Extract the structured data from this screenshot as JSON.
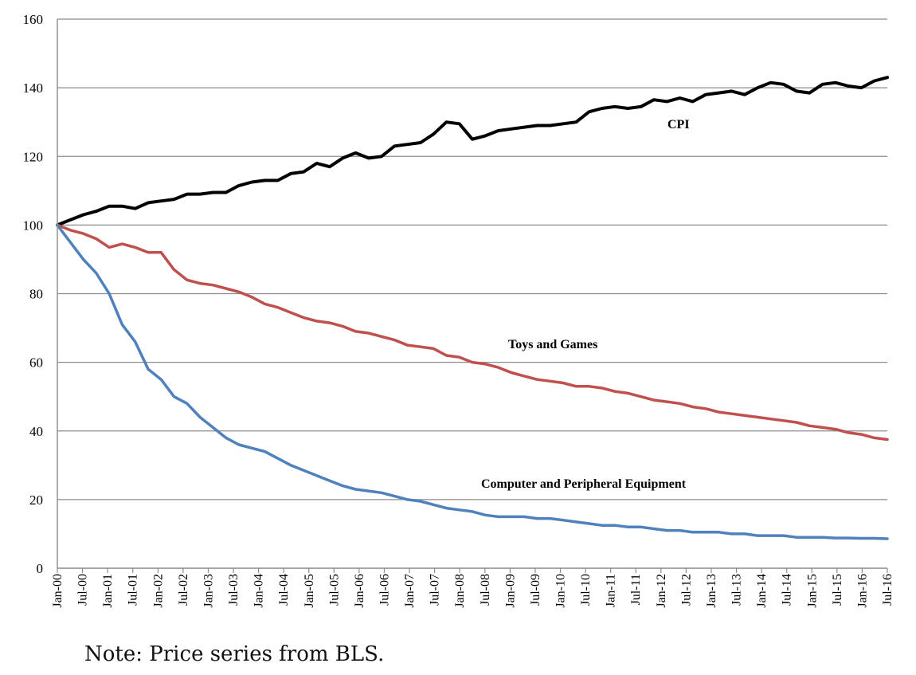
{
  "note": "Note: Price series from BLS.",
  "chart_data": {
    "type": "line",
    "x_tick_labels": [
      "Jan-00",
      "Jul-00",
      "Jan-01",
      "Jul-01",
      "Jan-02",
      "Jul-02",
      "Jan-03",
      "Jul-03",
      "Jan-04",
      "Jul-04",
      "Jan-05",
      "Jul-05",
      "Jan-06",
      "Jul-06",
      "Jan-07",
      "Jul-07",
      "Jan-08",
      "Jul-08",
      "Jan-09",
      "Jul-09",
      "Jan-10",
      "Jul-10",
      "Jan-11",
      "Jul-11",
      "Jan-12",
      "Jul-12",
      "Jan-13",
      "Jul-13",
      "Jan-14",
      "Jul-14",
      "Jan-15",
      "Jul-15",
      "Jan-16",
      "Jul-16"
    ],
    "ylim": [
      0,
      160
    ],
    "y_ticks": [
      0,
      20,
      40,
      60,
      80,
      100,
      120,
      140,
      160
    ],
    "grid": "horizontal",
    "legend": "none (labels placed on chart)",
    "series": [
      {
        "name": "CPI",
        "color": "#000000",
        "values": [
          100,
          101.5,
          103,
          104,
          105.5,
          105.5,
          104.8,
          106.5,
          107,
          107.5,
          109,
          109,
          109.5,
          109.5,
          111.5,
          112.5,
          113,
          113,
          115,
          115.5,
          118,
          117,
          119.5,
          121,
          119.5,
          120,
          123,
          123.5,
          124,
          126.5,
          130,
          129.5,
          125,
          126,
          127.5,
          128,
          128.5,
          129,
          129,
          129.5,
          130,
          133,
          134,
          134.5,
          134,
          134.5,
          136.5,
          136,
          137,
          136,
          138,
          138.5,
          139,
          138,
          140,
          141.5,
          141,
          139,
          138.5,
          141,
          141.5,
          140.5,
          140,
          142,
          143
        ]
      },
      {
        "name": "Toys and Games",
        "color": "#c0504d",
        "values": [
          100,
          98.5,
          97.5,
          96,
          93.5,
          94.5,
          93.5,
          92,
          92,
          87,
          84,
          83,
          82.5,
          81.5,
          80.5,
          79,
          77,
          76,
          74.5,
          73,
          72,
          71.5,
          70.5,
          69,
          68.5,
          67.5,
          66.5,
          65,
          64.5,
          64,
          62,
          61.5,
          60,
          59.5,
          58.5,
          57,
          56,
          55,
          54.5,
          54,
          53,
          53,
          52.5,
          51.5,
          51,
          50,
          49,
          48.5,
          48,
          47,
          46.5,
          45.5,
          45,
          44.5,
          44,
          43.5,
          43,
          42.5,
          41.5,
          41,
          40.5,
          39.5,
          39,
          38,
          37.5
        ]
      },
      {
        "name": "Computer and Peripheral Equipment",
        "color": "#4f81bd",
        "values": [
          100,
          95,
          90,
          86,
          80,
          71,
          66,
          58,
          55,
          50,
          48,
          44,
          41,
          38,
          36,
          35,
          34,
          32,
          30,
          28.5,
          27,
          25.5,
          24,
          23,
          22.5,
          22,
          21,
          20,
          19.5,
          18.5,
          17.5,
          17,
          16.5,
          15.5,
          15,
          15,
          15,
          14.5,
          14.5,
          14,
          13.5,
          13,
          12.5,
          12.5,
          12,
          12,
          11.5,
          11,
          11,
          10.5,
          10.5,
          10.5,
          10,
          10,
          9.5,
          9.5,
          9.5,
          9,
          9,
          9,
          8.8,
          8.8,
          8.7,
          8.7,
          8.6
        ]
      }
    ]
  }
}
